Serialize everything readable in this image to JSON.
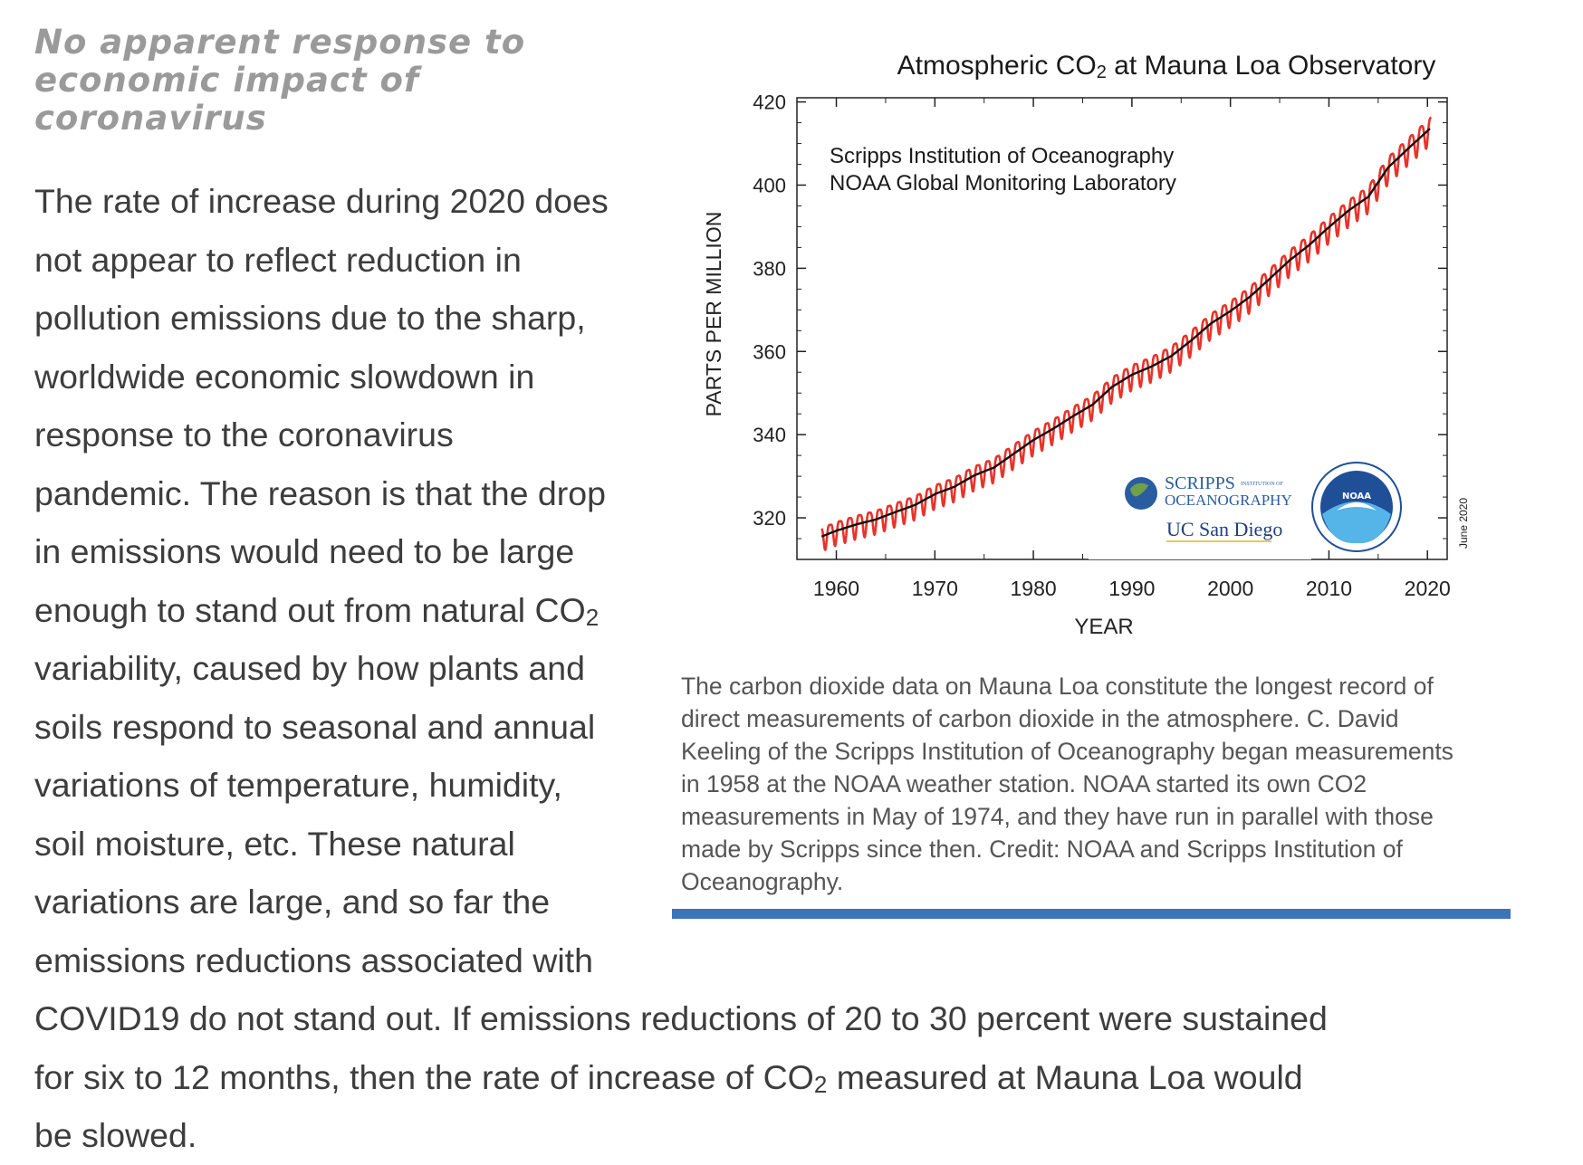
{
  "article": {
    "heading_lines": [
      "No apparent response to",
      "economic impact of",
      "coronavirus"
    ],
    "body_lines": [
      "The rate of increase during 2020 does",
      "not appear to reflect reduction in",
      "pollution emissions due to the sharp,",
      "worldwide economic slowdown in",
      "response to the coronavirus",
      "pandemic. The reason is that the drop",
      "in emissions would need to be large",
      "enough to stand out from natural CO",
      "variability, caused by how plants and",
      "soils respond to seasonal and annual",
      "variations of temperature, humidity,",
      "soil moisture, etc. These natural",
      "variations are large, and so far the",
      "emissions reductions associated with",
      "COVID19 do not stand out. If emissions reductions of 20 to 30 percent were sustained",
      "for six to 12 months, then the rate of increase of CO",
      " measured at Mauna Loa would",
      "be slowed."
    ],
    "subscript_two": "2"
  },
  "figure": {
    "caption_lines": [
      "The carbon dioxide data on Mauna Loa constitute the longest record of",
      "direct measurements of carbon dioxide in the atmosphere. C. David",
      "Keeling of the Scripps Institution of Oceanography began measurements",
      "in 1958 at the NOAA weather station. NOAA started its own CO2",
      "measurements in May of 1974, and they have run in parallel with those",
      "made by Scripps since then. Credit: NOAA and Scripps Institution of",
      "Oceanography."
    ],
    "accent_color": "#3b74b8"
  },
  "chart_data": {
    "type": "line",
    "title_prefix": "Atmospheric CO",
    "title_sub": "2",
    "title_suffix": " at Mauna Loa Observatory",
    "xlabel": "YEAR",
    "ylabel": "PARTS PER MILLION",
    "xlim": [
      1956,
      2022
    ],
    "ylim": [
      310,
      421
    ],
    "x_ticks": [
      1960,
      1970,
      1980,
      1990,
      2000,
      2010,
      2020
    ],
    "y_ticks": [
      320,
      340,
      360,
      380,
      400,
      420
    ],
    "source_lines": [
      "Scripps Institution of Oceanography",
      "NOAA Global Monitoring Laboratory"
    ],
    "date_stamp": "June 2020",
    "logos": {
      "scripps_line1": "SCRIPPS",
      "scripps_small": "INSTITUTION OF",
      "scripps_line2": "OCEANOGRAPHY",
      "ucsd": "UC San Diego",
      "noaa": "NOAA"
    },
    "series": [
      {
        "name": "monthly",
        "color": "#e8332a",
        "seasonal_amplitude_ppm": 6.5
      },
      {
        "name": "trend",
        "color": "#111111",
        "x": [
          1958.5,
          1960,
          1962,
          1964,
          1966,
          1968,
          1970,
          1972,
          1974,
          1976,
          1978,
          1980,
          1982,
          1984,
          1986,
          1988,
          1990,
          1992,
          1994,
          1996,
          1998,
          2000,
          2002,
          2004,
          2006,
          2008,
          2010,
          2012,
          2014,
          2016,
          2018,
          2020.4
        ],
        "y": [
          315.5,
          316.9,
          318.4,
          319.6,
          321.4,
          323.1,
          325.7,
          327.5,
          330.2,
          332.1,
          335.4,
          338.7,
          341.4,
          344.4,
          347.2,
          351.5,
          354.4,
          356.4,
          358.9,
          362.6,
          366.7,
          369.7,
          373.2,
          377.5,
          381.9,
          385.6,
          389.9,
          393.9,
          397.2,
          404.2,
          408.7,
          413.9
        ]
      }
    ]
  }
}
